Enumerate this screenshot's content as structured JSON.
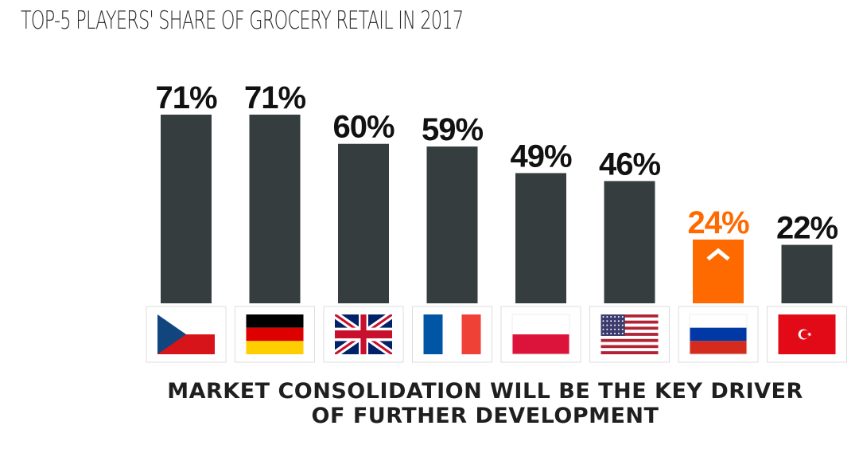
{
  "title": "TOP-5 PLAYERS' SHARE OF GROCERY RETAIL IN 2017",
  "chart_data": {
    "type": "bar",
    "title": "TOP-5 PLAYERS' SHARE OF GROCERY RETAIL IN 2017",
    "categories": [
      "Czech Republic",
      "Germany",
      "United Kingdom",
      "France",
      "Poland",
      "United States",
      "Russia",
      "Turkey"
    ],
    "values": [
      71,
      71,
      60,
      59,
      49,
      46,
      24,
      22
    ],
    "value_labels": [
      "71%",
      "71%",
      "60%",
      "59%",
      "49%",
      "46%",
      "24%",
      "22%"
    ],
    "unit": "%",
    "category_markers": [
      "flag-cz",
      "flag-de",
      "flag-gb",
      "flag-fr",
      "flag-pl",
      "flag-us",
      "flag-ru",
      "flag-tr"
    ],
    "highlight_index": 6,
    "highlight_marker": "chevron-up-icon",
    "ylim": [
      0,
      71
    ],
    "grid": false,
    "legend": "none"
  },
  "colors": {
    "bar": "#353d3e",
    "highlight": "#ff6a00",
    "label": "#111111"
  },
  "footer": {
    "line1": "MARKET CONSOLIDATION WILL BE THE KEY DRIVER",
    "line2": "OF FURTHER DEVELOPMENT"
  }
}
